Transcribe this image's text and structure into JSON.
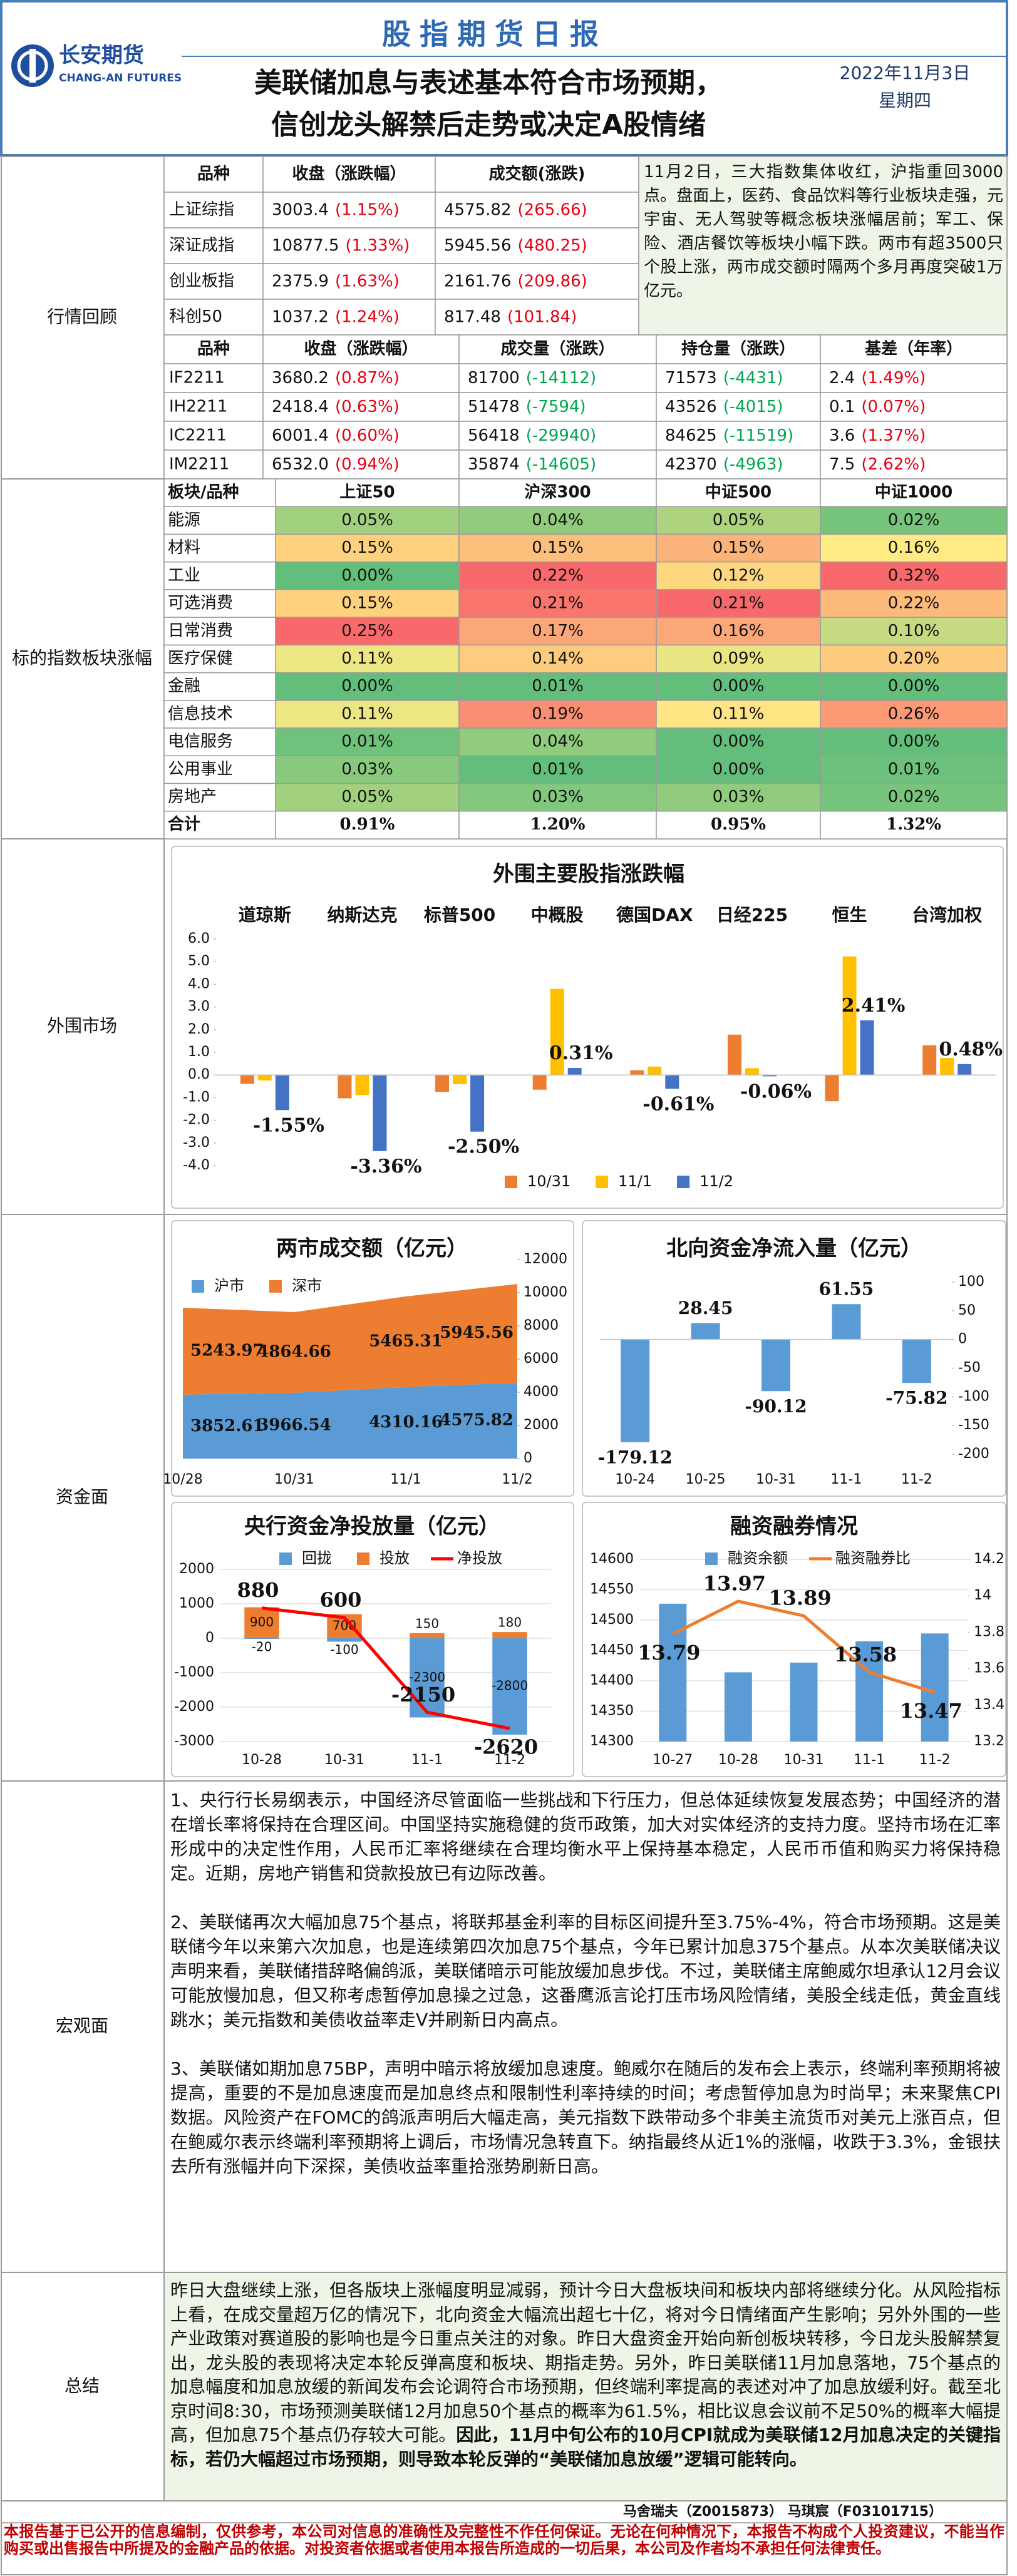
{
  "header": {
    "logo_cn": "长安期货",
    "logo_en": "CHANG-AN FUTURES",
    "title": "股指期货日报",
    "headline": [
      "美联储加息与表述基本符合市场预期，",
      "信创龙头解禁后走势或决定A股情绪"
    ],
    "date": "2022年11月3日",
    "weekday": "星期四"
  },
  "sections": [
    "行情回顾",
    "标的指数板块涨幅",
    "外围市场",
    "资金面",
    "宏观面",
    "总结"
  ],
  "index_table": {
    "header": [
      "品种",
      "收盘（涨跌幅）",
      "成交额(涨跌)"
    ],
    "rows": [
      [
        "上证综指",
        "3003.4",
        "(1.15%)",
        "4575.82",
        "(265.66)"
      ],
      [
        "深证成指",
        "10877.5",
        "(1.33%)",
        "5945.56",
        "(480.25)"
      ],
      [
        "创业板指",
        "2375.9",
        "(1.63%)",
        "2161.76",
        "(209.86)"
      ],
      [
        "科创50",
        "1037.2",
        "(1.24%)",
        "817.48",
        "(101.84)"
      ]
    ]
  },
  "market_comment": "11月2日，三大指数集体收红，沪指重回3000点。盘面上，医药、食品饮料等行业板块走强，元宇宙、无人驾驶等概念板块涨幅居前；军工、保险、酒店餐饮等板块小幅下跌。两市有超3500只个股上涨，两市成交额时隔两个多月再度突破1万亿元。",
  "futures_table": {
    "header": [
      "品种",
      "收盘（涨跌幅）",
      "成交量（涨跌）",
      "持仓量（涨跌）",
      "基差（年率）"
    ],
    "rows": [
      [
        "IF2211",
        "3680.2",
        "(0.87%)",
        "81700",
        "(-14112)",
        "71573",
        "(-4431)",
        "2.4",
        "(1.49%)"
      ],
      [
        "IH2211",
        "2418.4",
        "(0.63%)",
        "51478",
        "(-7594)",
        "43526",
        "(-4015)",
        "0.1",
        "(0.07%)"
      ],
      [
        "IC2211",
        "6001.4",
        "(0.60%)",
        "56418",
        "(-29940)",
        "84625",
        "(-11519)",
        "3.6",
        "(1.37%)"
      ],
      [
        "IM2211",
        "6532.0",
        "(0.94%)",
        "35874",
        "(-14605)",
        "42370",
        "(-4963)",
        "7.5",
        "(2.62%)"
      ]
    ]
  },
  "sector_table": {
    "header": [
      "板块/品种",
      "上证50",
      "沪深300",
      "中证500",
      "中证1000"
    ],
    "rows": [
      [
        "能源",
        "0.05%",
        "0.04%",
        "0.05%",
        "0.02%"
      ],
      [
        "材料",
        "0.15%",
        "0.15%",
        "0.15%",
        "0.16%"
      ],
      [
        "工业",
        "0.00%",
        "0.22%",
        "0.12%",
        "0.32%"
      ],
      [
        "可选消费",
        "0.15%",
        "0.21%",
        "0.21%",
        "0.22%"
      ],
      [
        "日常消费",
        "0.25%",
        "0.17%",
        "0.16%",
        "0.10%"
      ],
      [
        "医疗保健",
        "0.11%",
        "0.14%",
        "0.09%",
        "0.20%"
      ],
      [
        "金融",
        "0.00%",
        "0.01%",
        "0.00%",
        "0.00%"
      ],
      [
        "信息技术",
        "0.11%",
        "0.19%",
        "0.11%",
        "0.26%"
      ],
      [
        "电信服务",
        "0.01%",
        "0.04%",
        "0.00%",
        "0.00%"
      ],
      [
        "公用事业",
        "0.03%",
        "0.01%",
        "0.00%",
        "0.01%"
      ],
      [
        "房地产",
        "0.05%",
        "0.03%",
        "0.03%",
        "0.02%"
      ]
    ],
    "total": [
      "合计",
      "0.91%",
      "1.20%",
      "0.95%",
      "1.32%"
    ]
  },
  "chart_data": [
    {
      "type": "bar",
      "title": "外围主要股指涨跌幅",
      "categories": [
        "道琼斯",
        "纳斯达克",
        "标普500",
        "中概股",
        "德国DAX",
        "日经225",
        "恒生",
        "台湾加权"
      ],
      "series": [
        {
          "name": "10/31",
          "color": "#ed7d31",
          "values": [
            -0.39,
            -1.03,
            -0.75,
            -0.65,
            0.21,
            1.78,
            -1.16,
            1.31
          ]
        },
        {
          "name": "11/1",
          "color": "#ffc000",
          "values": [
            -0.24,
            -0.89,
            -0.41,
            3.8,
            0.37,
            0.3,
            5.23,
            0.75
          ]
        },
        {
          "name": "11/2",
          "color": "#4472c4",
          "values": [
            -1.55,
            -3.36,
            -2.5,
            0.31,
            -0.61,
            -0.06,
            2.41,
            0.48
          ],
          "value_labels": [
            "-1.55%",
            "-3.36%",
            "-2.50%",
            "0.31%",
            "-0.61%",
            "-0.06%",
            "2.41%",
            "0.48%"
          ]
        }
      ],
      "ylim": [
        -4,
        6
      ],
      "yticks": [
        {
          "value": -4,
          "label": "-4.0"
        },
        {
          "value": -3,
          "label": "-3.0"
        },
        {
          "value": -2,
          "label": "-2.0"
        },
        {
          "value": -1,
          "label": "-1.0"
        },
        {
          "value": 0,
          "label": "0.0"
        },
        {
          "value": 1,
          "label": "1.0"
        },
        {
          "value": 2,
          "label": "2.0"
        },
        {
          "value": 3,
          "label": "3.0"
        },
        {
          "value": 4,
          "label": "4.0"
        },
        {
          "value": 5,
          "label": "5.0"
        },
        {
          "value": 6,
          "label": "6.0"
        }
      ],
      "category_axis": "top",
      "legend": "bottom"
    },
    {
      "type": "stacked_area",
      "title": "两市成交额（亿元）",
      "categories": [
        "10/28",
        "10/31",
        "11/1",
        "11/2"
      ],
      "series": [
        {
          "name": "沪市",
          "color": "#5b9bd5",
          "values": [
            3852.61,
            3966.54,
            4310.16,
            4575.82
          ]
        },
        {
          "name": "深市",
          "color": "#ed7d31",
          "values": [
            5243.97,
            4864.66,
            5465.31,
            5945.56
          ]
        }
      ],
      "ylim": [
        0,
        12000
      ],
      "yticks": [
        0,
        2000,
        4000,
        6000,
        8000,
        10000,
        12000
      ],
      "y_axis_side": "right",
      "data_labels": true,
      "legend": "top-left"
    },
    {
      "type": "bar",
      "title": "北向资金净流入量（亿元）",
      "categories": [
        "10-24",
        "10-25",
        "10-31",
        "11-1",
        "11-2"
      ],
      "values": [
        -179.12,
        28.45,
        -90.12,
        61.55,
        -75.82
      ],
      "color": "#5b9bd5",
      "ylim": [
        -200,
        100
      ],
      "yticks": [
        -200,
        -150,
        -100,
        -50,
        0,
        50,
        100
      ],
      "y_axis_side": "right",
      "data_labels": true
    },
    {
      "type": "bar_line",
      "title": "央行资金净投放量（亿元）",
      "categories": [
        "10-28",
        "10-31",
        "11-1",
        "11-2"
      ],
      "series": [
        {
          "name": "回拢",
          "type": "bar",
          "color": "#5b9bd5",
          "values": [
            -20,
            -100,
            -2300,
            -2800
          ],
          "labels": true
        },
        {
          "name": "投放",
          "type": "bar",
          "color": "#ed7d31",
          "values": [
            900,
            700,
            150,
            180
          ],
          "labels": true
        },
        {
          "name": "净投放",
          "type": "line",
          "color": "#ff0000",
          "values": [
            880,
            600,
            -2150,
            -2620
          ],
          "labels": true
        }
      ],
      "ylim": [
        -3000,
        2000
      ],
      "yticks": [
        -3000,
        -2000,
        -1000,
        0,
        1000,
        2000
      ],
      "grid": true,
      "legend": "top"
    },
    {
      "type": "bar_line",
      "title": "融资融券情况",
      "categories": [
        "10-27",
        "10-28",
        "10-31",
        "11-1",
        "11-2"
      ],
      "series": [
        {
          "name": "融资余额",
          "type": "bar",
          "color": "#5b9bd5",
          "values": [
            14527,
            14414,
            14430,
            14465,
            14478
          ]
        },
        {
          "name": "融资融券比",
          "type": "line",
          "color": "#ed7d31",
          "axis": "y2",
          "values": [
            13.79,
            13.97,
            13.89,
            13.58,
            13.47
          ],
          "labels": true
        }
      ],
      "ylim": [
        14300,
        14600
      ],
      "yticks": [
        14300,
        14350,
        14400,
        14450,
        14500,
        14550,
        14600
      ],
      "y2lim": [
        13.2,
        14.2
      ],
      "y2ticks": [
        13.2,
        13.4,
        13.6,
        13.8,
        14,
        14.2
      ],
      "grid": true,
      "legend": "top"
    }
  ],
  "macro": [
    "1、央行行长易纲表示，中国经济尽管面临一些挑战和下行压力，但总体延续恢复发展态势；中国经济的潜在增长率将保持在合理区间。中国坚持实施稳健的货币政策，加大对实体经济的支持力度。坚持市场在汇率形成中的决定性作用，人民币汇率将继续在合理均衡水平上保持基本稳定，人民币币值和购买力将保持稳定。近期，房地产销售和贷款投放已有边际改善。",
    "2、美联储再次大幅加息75个基点，将联邦基金利率的目标区间提升至3.75%-4%，符合市场预期。这是美联储今年以来第六次加息，也是连续第四次加息75个基点，今年已累计加息375个基点。从本次美联储决议声明来看，美联储措辞略偏鸽派，美联储暗示可能放缓加息步伐。不过，美联储主席鲍威尔坦承认12月会议可能放慢加息，但又称考虑暂停加息操之过急，这番鹰派言论打压市场风险情绪，美股全线走低，黄金直线跳水；美元指数和美债收益率走V并刷新日内高点。",
    "3、美联储如期加息75BP，声明中暗示将放缓加息速度。鲍威尔在随后的发布会上表示，终端利率预期将被提高，重要的不是加息速度而是加息终点和限制性利率持续的时间；考虑暂停加息为时尚早；未来聚焦CPI数据。风险资产在FOMC的鸽派声明后大幅走高，美元指数下跌带动多个非美主流货币对美元上涨百点，但在鲍威尔表示终端利率预期将上调后，市场情况急转直下。纳指最终从近1%的涨幅，收跌于3.3%，金银扶去所有涨幅并向下深探，美债收益率重拾涨势刷新日高。"
  ],
  "summary": {
    "text": "昨日大盘继续上涨，但各版块上涨幅度明显减弱，预计今日大盘板块间和板块内部将继续分化。从风险指标上看，在成交量超万亿的情况下，北向资金大幅流出超七十亿，将对今日情绪面产生影响；另外外围的一些产业政策对赛道股的影响也是今日重点关注的对象。昨日大盘资金开始向新创板块转移，今日龙头股解禁复出，龙头股的表现将决定本轮反弹高度和板块、期指走势。另外，昨日美联储11月加息落地，75个基点的加息幅度和加息放缓的新闻发布会论调符合市场预期，但终端利率提高的表述对冲了加息放缓利好。截至北京时间8:30，市场预测美联储12月加息50个基点的概率为61.5%，相比议息会议前不足50%的概率大幅提高，但加息75个基点仍存较大可能。",
    "bold": "因此，11月中旬公布的10月CPI就成为美联储12月加息决定的关键指标，若仍大幅超过市场预期，则导致本轮反弹的“美联储加息放缓”逻辑可能转向。"
  },
  "authors": "马舍瑞夫（Z0015873） 马琪宸（F03101715）",
  "disclaimer": "本报告基于已公开的信息编制，仅供参考，本公司对信息的准确性及完整性不作任何保证。无论在何种情况下，本报告不构成个人投资建议，不能当作购买或出售报告中所提及的金融产品的依据。对投资者依据或者使用本报告所造成的一切后果，本公司及作者均不承担任何法律责任。"
}
